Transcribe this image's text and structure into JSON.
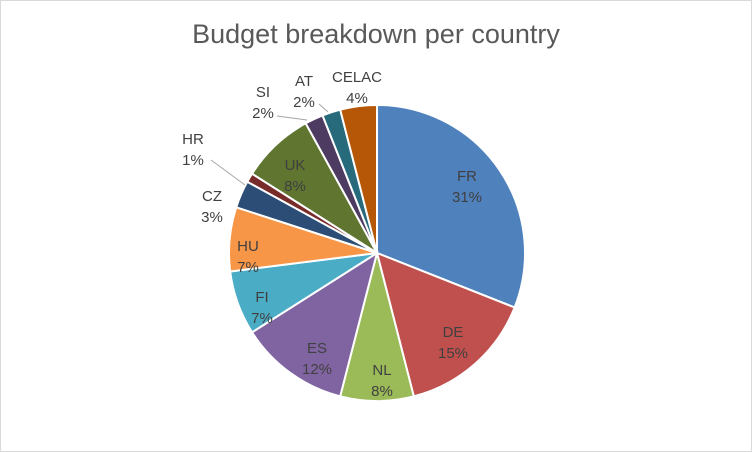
{
  "chart_data": {
    "type": "pie",
    "title": "Budget breakdown per country",
    "categories": [
      "FR",
      "DE",
      "NL",
      "ES",
      "FI",
      "HU",
      "CZ",
      "HR",
      "UK",
      "SI",
      "AT",
      "CELAC"
    ],
    "values": [
      31,
      15,
      8,
      12,
      7,
      7,
      3,
      1,
      8,
      2,
      2,
      4
    ],
    "labels": [
      "31%",
      "15%",
      "8%",
      "12%",
      "7%",
      "7%",
      "3%",
      "1%",
      "8%",
      "2%",
      "2%",
      "4%"
    ],
    "colors": [
      "#4f81bd",
      "#c0504d",
      "#9bbb59",
      "#8064a2",
      "#4bacc6",
      "#f79646",
      "#2c4d75",
      "#772c2a",
      "#5f7530",
      "#4d3b62",
      "#276a7c",
      "#b65708"
    ],
    "legend": "none",
    "start": "12 o'clock, clockwise"
  }
}
